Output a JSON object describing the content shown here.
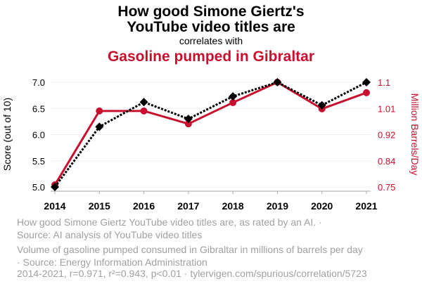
{
  "chart_data": {
    "type": "line",
    "title_line1": "How good Simone Giertz's",
    "title_line2": "YouTube video titles are",
    "subtitle": "correlates with",
    "title2": "Gasoline pumped in Gibraltar",
    "x": [
      2014,
      2015,
      2016,
      2017,
      2018,
      2019,
      2020,
      2021
    ],
    "x_ticks": [
      "2014",
      "2015",
      "2016",
      "2017",
      "2018",
      "2019",
      "2020",
      "2021"
    ],
    "ylabel": "Score (out of 10)",
    "ylim": [
      5.0,
      7.0
    ],
    "y_ticks": [
      "7.0",
      "6.5",
      "6.0",
      "5.5",
      "5.0"
    ],
    "y2label": "Million Barrels/Day",
    "y2lim": [
      0.75,
      1.1
    ],
    "y2_ticks": [
      "1.1",
      "1.01",
      "0.92",
      "0.84",
      "0.75"
    ],
    "grid": true,
    "series": [
      {
        "name": "How good Simone Giertz YouTube video titles are, as rated by an AI. · Source: AI analysis of YouTube video titles",
        "legend_line1": "How good Simone Giertz YouTube video titles are, as rated by an AI. ·",
        "legend_line2": "Source: AI analysis of YouTube video titles",
        "axis": "left",
        "color": "#000000",
        "values": [
          5.0,
          6.15,
          6.62,
          6.3,
          6.73,
          7.0,
          6.56,
          7.0
        ]
      },
      {
        "name": "Volume of gasoline pumped consumed in Gibraltar in millions of barrels per day · Source: Energy Information Administration",
        "legend_line1": "Volume of gasoline pumped consumed in Gibraltar in millions of barrels per day",
        "legend_line2": "· Source: Energy Information Administration",
        "axis": "right",
        "color": "#c8102e",
        "values": [
          0.757,
          1.004,
          1.004,
          0.961,
          1.032,
          1.1,
          1.011,
          1.065
        ]
      }
    ],
    "footer": "2014-2021, r=0.971, r²=0.943, p<0.01 · tylervigen.com/spurious/correlation/5723"
  }
}
